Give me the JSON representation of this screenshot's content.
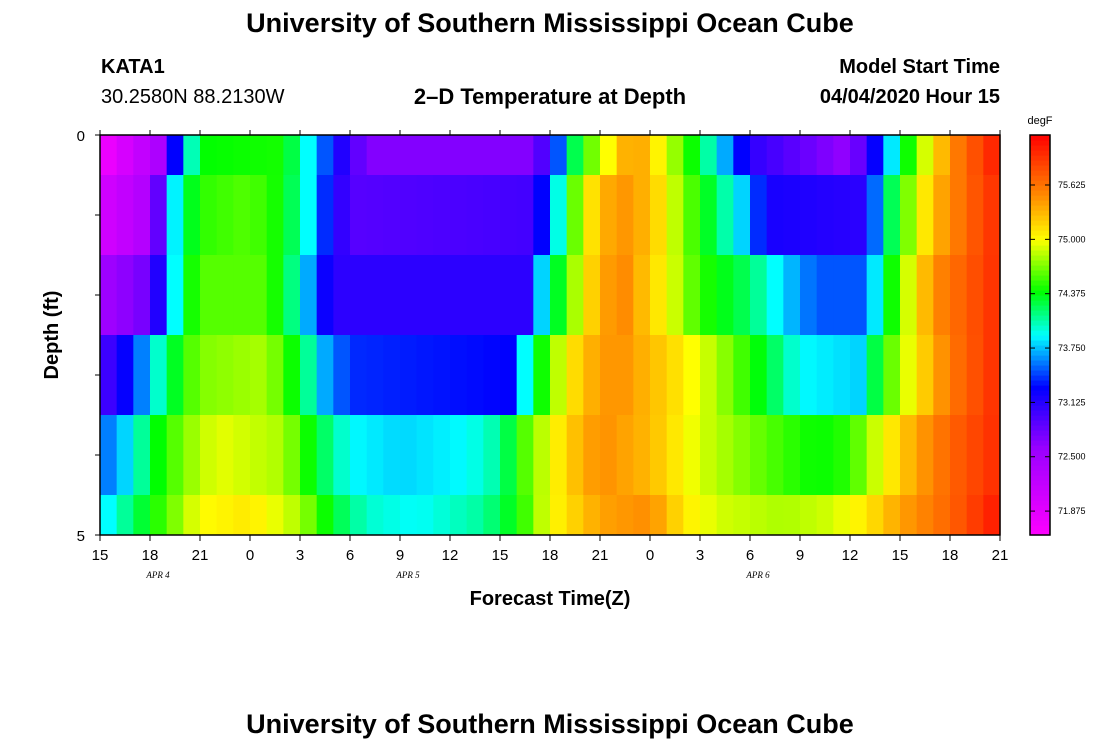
{
  "header": {
    "title": "University of Southern Mississippi Ocean Cube",
    "footer_title": "University of Southern Mississippi Ocean Cube",
    "station": "KATA1",
    "coords": "30.2580N 88.2130W",
    "plot_title": "2–D Temperature at Depth",
    "model_start_label": "Model Start Time",
    "model_start_value": "04/04/2020 Hour 15"
  },
  "chart_data": {
    "type": "heatmap",
    "xlabel": "Forecast Time(Z)",
    "ylabel": "Depth (ft)",
    "colorbar_unit": "degF",
    "x_tick_labels": [
      "15",
      "18",
      "21",
      "0",
      "3",
      "6",
      "9",
      "12",
      "15",
      "18",
      "21",
      "0",
      "3",
      "6",
      "9",
      "12",
      "15",
      "18",
      "21"
    ],
    "date_labels": [
      {
        "label": "APR 4",
        "hour": 3
      },
      {
        "label": "APR 5",
        "hour": 18
      },
      {
        "label": "APR 6",
        "hour": 39
      }
    ],
    "hours_range": [
      0,
      54
    ],
    "y_ticks": [
      "0",
      "5"
    ],
    "ylim": [
      0,
      5
    ],
    "depth_row_edges": [
      0,
      0.5,
      1.5,
      2.5,
      3.5,
      4.5,
      5
    ],
    "colorbar_ticks": [
      "71.875",
      "72.500",
      "73.125",
      "73.750",
      "74.375",
      "75.000",
      "75.625"
    ],
    "color_range": [
      71.6,
      76.2
    ],
    "color_stops": [
      {
        "v": 71.6,
        "c": "#ff00ff"
      },
      {
        "v": 72.6,
        "c": "#9900ff"
      },
      {
        "v": 73.3,
        "c": "#0000ff"
      },
      {
        "v": 73.9,
        "c": "#00ffff"
      },
      {
        "v": 74.4,
        "c": "#00ff00"
      },
      {
        "v": 75.0,
        "c": "#ffff00"
      },
      {
        "v": 75.5,
        "c": "#ff8c00"
      },
      {
        "v": 76.2,
        "c": "#ff0000"
      }
    ],
    "depth_rows": [
      {
        "depth": 0,
        "series": [
          [
            0,
            71.7
          ],
          [
            3.5,
            72.4
          ],
          [
            4.5,
            73.3
          ],
          [
            5.3,
            73.9
          ],
          [
            6,
            74.4
          ],
          [
            11,
            74.45
          ],
          [
            12.5,
            73.9
          ],
          [
            14,
            73.3
          ],
          [
            16,
            72.7
          ],
          [
            26,
            72.7
          ],
          [
            27.3,
            73.3
          ],
          [
            28,
            74.0
          ],
          [
            29,
            74.5
          ],
          [
            30.5,
            75.0
          ],
          [
            32,
            75.5
          ],
          [
            33,
            75.2
          ],
          [
            35,
            74.6
          ],
          [
            37,
            73.9
          ],
          [
            39,
            73.1
          ],
          [
            45,
            72.6
          ],
          [
            47,
            73.5
          ],
          [
            48,
            74.2
          ],
          [
            49.5,
            74.9
          ],
          [
            51,
            75.5
          ],
          [
            54,
            76.1
          ]
        ]
      },
      {
        "depth": 1,
        "series": [
          [
            0,
            72.0
          ],
          [
            3,
            72.4
          ],
          [
            4,
            73.3
          ],
          [
            4.7,
            74.1
          ],
          [
            6,
            74.5
          ],
          [
            9,
            74.6
          ],
          [
            11,
            74.4
          ],
          [
            12.5,
            73.9
          ],
          [
            13.5,
            73.4
          ],
          [
            15,
            72.9
          ],
          [
            26,
            73.0
          ],
          [
            27,
            73.6
          ],
          [
            28,
            74.3
          ],
          [
            29,
            75.0
          ],
          [
            31,
            75.5
          ],
          [
            33,
            75.3
          ],
          [
            35,
            74.7
          ],
          [
            37,
            74.2
          ],
          [
            38.5,
            73.8
          ],
          [
            40,
            73.2
          ],
          [
            46,
            73.1
          ],
          [
            47,
            74.0
          ],
          [
            48.5,
            74.7
          ],
          [
            50,
            75.3
          ],
          [
            52,
            75.7
          ],
          [
            54,
            76.0
          ]
        ]
      },
      {
        "depth": 2,
        "series": [
          [
            0,
            72.5
          ],
          [
            3,
            72.8
          ],
          [
            4,
            73.5
          ],
          [
            5,
            74.3
          ],
          [
            6,
            74.6
          ],
          [
            10,
            74.6
          ],
          [
            12,
            74.0
          ],
          [
            13,
            73.4
          ],
          [
            14,
            73.1
          ],
          [
            25.5,
            73.1
          ],
          [
            26.5,
            73.8
          ],
          [
            28,
            74.6
          ],
          [
            30,
            75.4
          ],
          [
            31.5,
            75.5
          ],
          [
            34,
            75.0
          ],
          [
            36,
            74.5
          ],
          [
            39,
            74.2
          ],
          [
            41,
            73.8
          ],
          [
            43,
            73.5
          ],
          [
            46,
            73.5
          ],
          [
            47,
            74.2
          ],
          [
            48.5,
            74.9
          ],
          [
            50,
            75.5
          ],
          [
            54,
            76.0
          ]
        ]
      },
      {
        "depth": 3,
        "series": [
          [
            0,
            72.9
          ],
          [
            2,
            73.4
          ],
          [
            3.5,
            74.0
          ],
          [
            5,
            74.5
          ],
          [
            6,
            74.7
          ],
          [
            10,
            74.8
          ],
          [
            12,
            74.3
          ],
          [
            13.5,
            73.7
          ],
          [
            15,
            73.4
          ],
          [
            24.5,
            73.3
          ],
          [
            25.5,
            73.9
          ],
          [
            27,
            74.7
          ],
          [
            29,
            75.3
          ],
          [
            31,
            75.5
          ],
          [
            34,
            75.2
          ],
          [
            37,
            74.8
          ],
          [
            40,
            74.3
          ],
          [
            42,
            73.9
          ],
          [
            45.5,
            73.8
          ],
          [
            47,
            74.5
          ],
          [
            49,
            75.1
          ],
          [
            51,
            75.6
          ],
          [
            54,
            76.0
          ]
        ]
      },
      {
        "depth": 4,
        "series": [
          [
            0,
            73.5
          ],
          [
            2,
            73.9
          ],
          [
            3,
            74.3
          ],
          [
            5,
            74.7
          ],
          [
            7,
            74.95
          ],
          [
            11,
            74.8
          ],
          [
            13,
            74.3
          ],
          [
            15,
            73.9
          ],
          [
            18,
            73.8
          ],
          [
            22,
            73.9
          ],
          [
            24,
            74.1
          ],
          [
            25.5,
            74.6
          ],
          [
            28,
            75.2
          ],
          [
            30,
            75.5
          ],
          [
            33,
            75.3
          ],
          [
            36,
            74.9
          ],
          [
            40,
            74.6
          ],
          [
            43,
            74.4
          ],
          [
            45,
            74.5
          ],
          [
            47,
            75.0
          ],
          [
            49,
            75.4
          ],
          [
            51,
            75.7
          ],
          [
            54,
            76.0
          ]
        ]
      },
      {
        "depth": 5,
        "series": [
          [
            0,
            73.8
          ],
          [
            2,
            74.2
          ],
          [
            4,
            74.6
          ],
          [
            6,
            75.0
          ],
          [
            9,
            75.1
          ],
          [
            12,
            74.8
          ],
          [
            14,
            74.3
          ],
          [
            16,
            74.0
          ],
          [
            19,
            73.9
          ],
          [
            23,
            74.1
          ],
          [
            25,
            74.4
          ],
          [
            27,
            75.0
          ],
          [
            30,
            75.4
          ],
          [
            33,
            75.5
          ],
          [
            35,
            75.1
          ],
          [
            37,
            74.9
          ],
          [
            41,
            74.8
          ],
          [
            44,
            74.9
          ],
          [
            46,
            75.1
          ],
          [
            48,
            75.4
          ],
          [
            51,
            75.7
          ],
          [
            54,
            76.1
          ]
        ]
      }
    ]
  }
}
